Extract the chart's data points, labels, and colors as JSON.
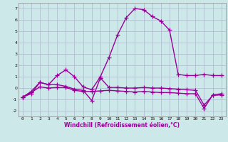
{
  "xlabel": "Windchill (Refroidissement éolien,°C)",
  "x": [
    0,
    1,
    2,
    3,
    4,
    5,
    6,
    7,
    8,
    9,
    10,
    11,
    12,
    13,
    14,
    15,
    16,
    17,
    18,
    19,
    20,
    21,
    22,
    23
  ],
  "line1": [
    -0.8,
    -0.5,
    0.5,
    0.3,
    1.1,
    1.6,
    1.0,
    0.1,
    -0.15,
    1.0,
    2.7,
    4.7,
    6.2,
    7.0,
    6.9,
    6.3,
    5.9,
    5.1,
    1.2,
    1.1,
    1.1,
    1.2,
    1.1,
    1.1
  ],
  "line2": [
    -0.8,
    -0.3,
    0.5,
    0.3,
    0.3,
    0.15,
    -0.1,
    -0.2,
    -1.1,
    0.9,
    0.05,
    0.05,
    0.0,
    0.0,
    0.05,
    0.0,
    0.0,
    -0.05,
    -0.1,
    -0.15,
    -0.2,
    -1.5,
    -0.65,
    -0.6
  ],
  "line3": [
    -0.8,
    -0.4,
    0.1,
    0.0,
    0.05,
    0.05,
    -0.2,
    -0.3,
    -0.3,
    -0.25,
    -0.2,
    -0.25,
    -0.3,
    -0.35,
    -0.3,
    -0.35,
    -0.4,
    -0.4,
    -0.45,
    -0.5,
    -0.5,
    -1.8,
    -0.6,
    -0.5
  ],
  "ylim": [
    -2.5,
    7.5
  ],
  "xlim": [
    -0.5,
    23.5
  ],
  "yticks": [
    -2,
    -1,
    0,
    1,
    2,
    3,
    4,
    5,
    6,
    7
  ],
  "xticks": [
    0,
    1,
    2,
    3,
    4,
    5,
    6,
    7,
    8,
    9,
    10,
    11,
    12,
    13,
    14,
    15,
    16,
    17,
    18,
    19,
    20,
    21,
    22,
    23
  ],
  "line_color": "#990099",
  "bg_color": "#cce8e8",
  "grid_color": "#aab8cc",
  "marker": "+",
  "marker_size": 4,
  "linewidth": 1.0
}
